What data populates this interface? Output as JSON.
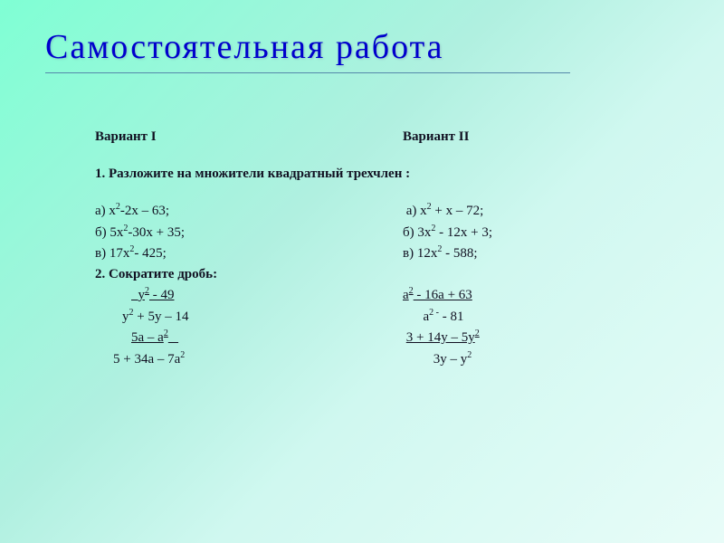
{
  "title": "Самостоятельная  работа",
  "variant1": "Вариант I",
  "variant2": "Вариант II",
  "task1_title": "1. Разложите на множители квадратный трехчлен :",
  "v1_a": "а) х",
  "v1_a_rest": "-2х – 63;",
  "v2_a": "а) х",
  "v2_a_rest": "  +  х – 72;",
  "v1_b": "б) 5х",
  "v1_b_rest": "-30х + 35;",
  "v2_b": "б) 3х",
  "v2_b_rest": "  - 12х + 3;",
  "v1_c": "в) 17х",
  "v1_c_rest": "- 425;",
  "v2_c": "в) 12х",
  "v2_c_rest": "  - 588;",
  "task2_title": "2. Сократите дробь:",
  "v1_f1_pre": "у",
  "v1_f1_post": " - 49",
  "v2_f1_pre": "а",
  "v2_f1_post": " - 16а + 63",
  "v1_f2_pre": "у",
  "v1_f2_mid": "  + 5у – 14",
  "v2_f2_pre": "а",
  "v2_f2_post": "  - 81",
  "v1_f3_pre": "5а – а",
  "v2_f3": "3 + 14у – 5у",
  "v1_f4": "5 + 34а – 7а",
  "v2_f4": "3у – у",
  "exp2": "2",
  "exp2m": "2 -",
  "colors": {
    "title": "#0000cc",
    "text": "#111122",
    "bg_gradient_start": "#7fffd4",
    "bg_gradient_end": "#e8fcf8"
  }
}
